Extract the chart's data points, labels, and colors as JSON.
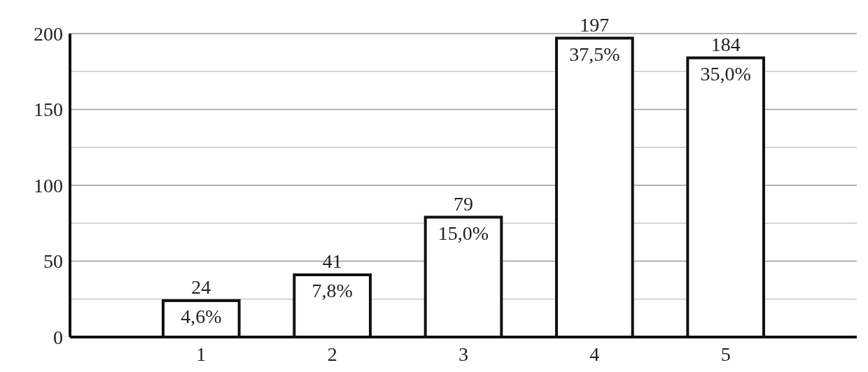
{
  "chart_data": {
    "type": "bar",
    "categories": [
      "1",
      "2",
      "3",
      "4",
      "5"
    ],
    "values": [
      24,
      41,
      79,
      197,
      184
    ],
    "color": "#ffffff",
    "ylim": [
      0,
      200
    ],
    "yticks": [
      0,
      {
        "value": 25,
        "label": null
      },
      50,
      {
        "value": 75,
        "label": null
      },
      100,
      {
        "value": 125,
        "label": null
      },
      150,
      {
        "value": 175,
        "label": null
      },
      200
    ],
    "grid": "y",
    "data_labels": true,
    "annotations": [
      {
        "text": "4,6%",
        "x": "1",
        "y": 24
      },
      {
        "text": "7,8%",
        "x": "2",
        "y": 41
      },
      {
        "text": "15,0%",
        "x": "3",
        "y": 79
      },
      {
        "text": "37,5%",
        "x": "4",
        "y": 197
      },
      {
        "text": "35,0%",
        "x": "5",
        "y": 184
      }
    ]
  }
}
